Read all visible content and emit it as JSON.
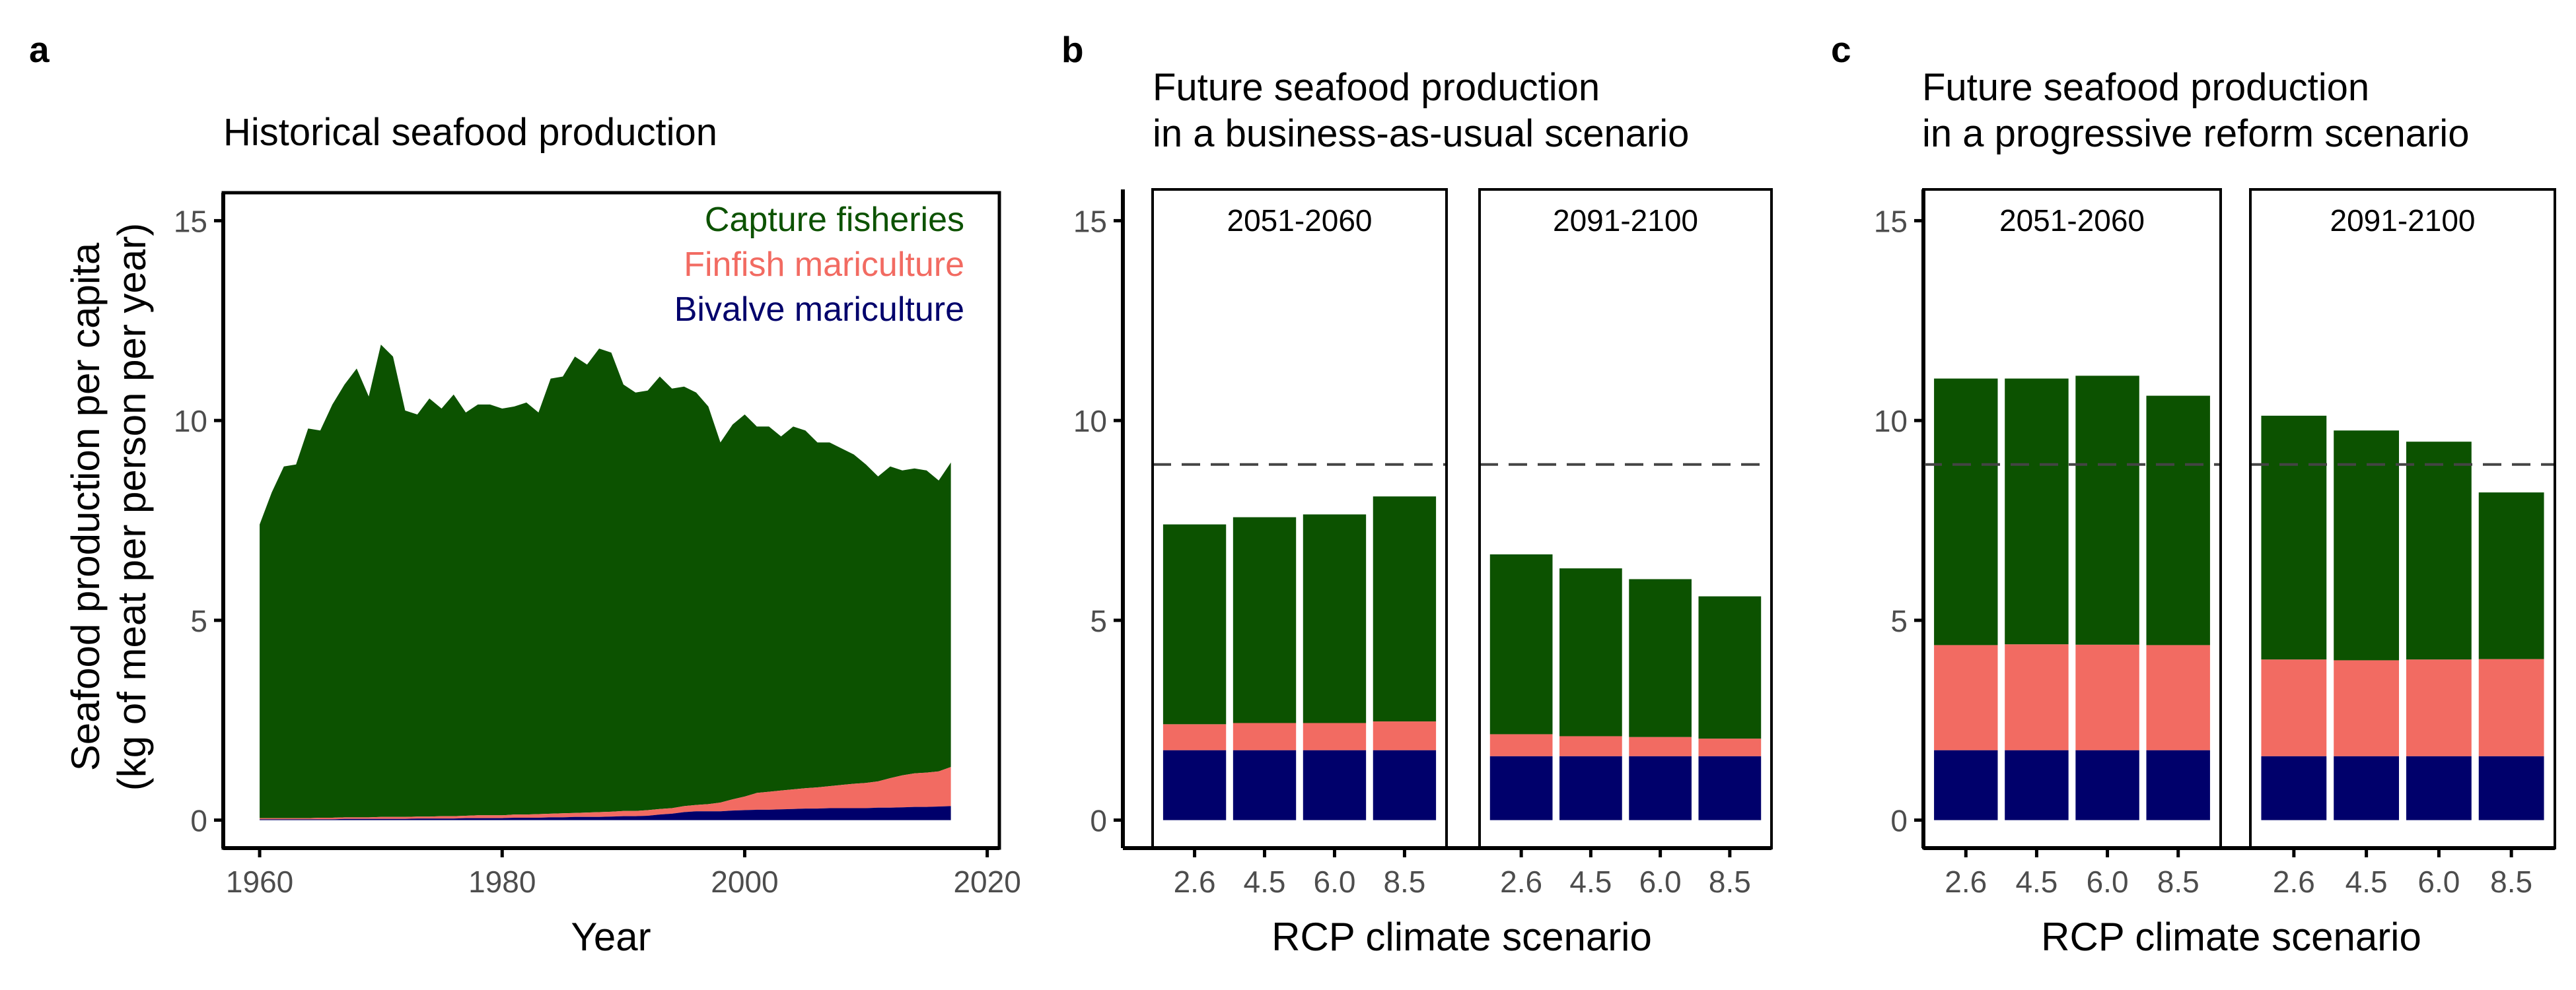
{
  "figure": {
    "colors": {
      "capture": "#0c5200",
      "finfish": "#f26b62",
      "bivalve": "#00006b",
      "axis": "#000000",
      "tick_text": "#4d4d4d",
      "reference_line": "#444444"
    }
  },
  "chart_data": [
    {
      "id": "a",
      "type": "area",
      "panel_label": "a",
      "title": "Historical seafood production",
      "xlabel": "Year",
      "ylabel_line1": "Seafood production per capita",
      "ylabel_line2": "(kg of meat per person per year)",
      "xlim": [
        1957,
        2021
      ],
      "ylim": [
        -0.7,
        15.7
      ],
      "x_ticks": [
        1960,
        1980,
        2000,
        2020
      ],
      "y_ticks": [
        0,
        5,
        10,
        15
      ],
      "legend_position": "top-right",
      "legend": [
        {
          "name": "Capture fisheries",
          "series": "capture"
        },
        {
          "name": "Finfish mariculture",
          "series": "finfish"
        },
        {
          "name": "Bivalve mariculture",
          "series": "bivalve"
        }
      ],
      "stack_order": [
        "bivalve",
        "finfish",
        "capture"
      ],
      "x": [
        1960,
        1961,
        1962,
        1963,
        1964,
        1965,
        1966,
        1967,
        1968,
        1969,
        1970,
        1971,
        1972,
        1973,
        1974,
        1975,
        1976,
        1977,
        1978,
        1979,
        1980,
        1981,
        1982,
        1983,
        1984,
        1985,
        1986,
        1987,
        1988,
        1989,
        1990,
        1991,
        1992,
        1993,
        1994,
        1995,
        1996,
        1997,
        1998,
        1999,
        2000,
        2001,
        2002,
        2003,
        2004,
        2005,
        2006,
        2007,
        2008,
        2009,
        2010,
        2011,
        2012,
        2013,
        2014,
        2015,
        2016,
        2017
      ],
      "series": {
        "bivalve": [
          0.02,
          0.02,
          0.02,
          0.02,
          0.02,
          0.02,
          0.02,
          0.03,
          0.03,
          0.03,
          0.03,
          0.03,
          0.03,
          0.04,
          0.04,
          0.04,
          0.04,
          0.05,
          0.05,
          0.05,
          0.05,
          0.06,
          0.06,
          0.06,
          0.07,
          0.07,
          0.08,
          0.08,
          0.08,
          0.09,
          0.1,
          0.1,
          0.11,
          0.14,
          0.16,
          0.2,
          0.22,
          0.22,
          0.22,
          0.24,
          0.25,
          0.26,
          0.26,
          0.27,
          0.28,
          0.29,
          0.29,
          0.3,
          0.3,
          0.3,
          0.3,
          0.31,
          0.31,
          0.32,
          0.33,
          0.33,
          0.34,
          0.35
        ],
        "finfish": [
          0.03,
          0.03,
          0.03,
          0.03,
          0.03,
          0.04,
          0.04,
          0.04,
          0.04,
          0.04,
          0.05,
          0.05,
          0.05,
          0.05,
          0.05,
          0.06,
          0.06,
          0.06,
          0.07,
          0.07,
          0.07,
          0.08,
          0.08,
          0.09,
          0.09,
          0.1,
          0.1,
          0.11,
          0.12,
          0.12,
          0.13,
          0.13,
          0.14,
          0.14,
          0.14,
          0.15,
          0.16,
          0.18,
          0.22,
          0.28,
          0.34,
          0.42,
          0.45,
          0.47,
          0.49,
          0.51,
          0.53,
          0.55,
          0.58,
          0.61,
          0.63,
          0.66,
          0.74,
          0.8,
          0.84,
          0.86,
          0.88,
          0.98
        ],
        "total": [
          7.4,
          8.2,
          8.85,
          8.9,
          9.8,
          9.75,
          10.4,
          10.9,
          11.3,
          10.6,
          11.9,
          11.6,
          10.25,
          10.15,
          10.55,
          10.3,
          10.65,
          10.2,
          10.4,
          10.4,
          10.3,
          10.35,
          10.45,
          10.2,
          11.05,
          11.1,
          11.6,
          11.4,
          11.8,
          11.7,
          10.9,
          10.7,
          10.75,
          11.1,
          10.8,
          10.85,
          10.7,
          10.35,
          9.45,
          9.9,
          10.15,
          9.85,
          9.85,
          9.6,
          9.85,
          9.75,
          9.45,
          9.45,
          9.3,
          9.15,
          8.9,
          8.6,
          8.85,
          8.75,
          8.8,
          8.75,
          8.5,
          8.95
        ]
      }
    },
    {
      "id": "b",
      "type": "bar",
      "panel_label": "b",
      "title_line1": "Future seafood production",
      "title_line2": "in a business-as-usual scenario",
      "xlabel": "RCP climate scenario",
      "ylim": [
        -0.7,
        15.7
      ],
      "y_ticks": [
        0,
        5,
        10,
        15
      ],
      "reference_line": 8.9,
      "categories": [
        "2.6",
        "4.5",
        "6.0",
        "8.5"
      ],
      "facets": [
        {
          "label": "2051-2060",
          "series": [
            {
              "key": "bivalve",
              "values": [
                1.75,
                1.75,
                1.75,
                1.75
              ]
            },
            {
              "key": "finfish",
              "values": [
                0.65,
                0.68,
                0.68,
                0.72
              ]
            },
            {
              "key": "capture",
              "values": [
                5.0,
                5.15,
                5.22,
                5.63
              ]
            }
          ]
        },
        {
          "label": "2091-2100",
          "series": [
            {
              "key": "bivalve",
              "values": [
                1.6,
                1.6,
                1.6,
                1.6
              ]
            },
            {
              "key": "finfish",
              "values": [
                0.55,
                0.5,
                0.48,
                0.44
              ]
            },
            {
              "key": "capture",
              "values": [
                4.5,
                4.2,
                3.95,
                3.56
              ]
            }
          ]
        }
      ]
    },
    {
      "id": "c",
      "type": "bar",
      "panel_label": "c",
      "title_line1": "Future seafood production",
      "title_line2": "in a progressive reform scenario",
      "xlabel": "RCP climate scenario",
      "ylim": [
        -0.7,
        15.7
      ],
      "y_ticks": [
        0,
        5,
        10,
        15
      ],
      "reference_line": 8.9,
      "categories": [
        "2.6",
        "4.5",
        "6.0",
        "8.5"
      ],
      "facets": [
        {
          "label": "2051-2060",
          "series": [
            {
              "key": "bivalve",
              "values": [
                1.75,
                1.75,
                1.75,
                1.75
              ]
            },
            {
              "key": "finfish",
              "values": [
                2.63,
                2.65,
                2.64,
                2.63
              ]
            },
            {
              "key": "capture",
              "values": [
                6.67,
                6.65,
                6.73,
                6.24
              ]
            }
          ]
        },
        {
          "label": "2091-2100",
          "series": [
            {
              "key": "bivalve",
              "values": [
                1.6,
                1.6,
                1.6,
                1.6
              ]
            },
            {
              "key": "finfish",
              "values": [
                2.42,
                2.4,
                2.42,
                2.43
              ]
            },
            {
              "key": "capture",
              "values": [
                6.1,
                5.75,
                5.45,
                4.17
              ]
            }
          ]
        }
      ]
    }
  ]
}
